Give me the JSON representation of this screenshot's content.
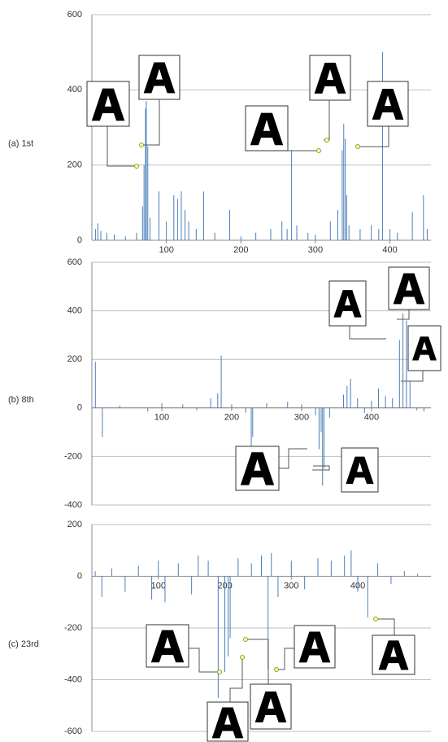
{
  "chart_data": [
    {
      "type": "bar",
      "label": "(a) 1st",
      "color": "#4a7ebb",
      "grid": true,
      "x": [
        5,
        8,
        12,
        20,
        30,
        45,
        60,
        68,
        70,
        72,
        73,
        75,
        78,
        90,
        100,
        110,
        115,
        120,
        125,
        130,
        140,
        150,
        165,
        185,
        200,
        220,
        240,
        255,
        262,
        268,
        275,
        290,
        300,
        320,
        330,
        336,
        338,
        340,
        342,
        345,
        360,
        375,
        385,
        390,
        400,
        410,
        430,
        445,
        450
      ],
      "values": [
        30,
        45,
        25,
        20,
        15,
        10,
        20,
        90,
        200,
        350,
        370,
        250,
        60,
        130,
        50,
        120,
        110,
        130,
        80,
        50,
        30,
        130,
        20,
        80,
        10,
        20,
        30,
        50,
        30,
        240,
        40,
        20,
        15,
        50,
        80,
        240,
        310,
        270,
        120,
        40,
        30,
        40,
        30,
        500,
        30,
        20,
        75,
        120,
        30
      ],
      "xlim": [
        0,
        455
      ],
      "xticks": [
        100,
        200,
        300,
        400
      ],
      "ylim": [
        0,
        600
      ],
      "yticks": [
        0,
        200,
        400,
        600
      ]
    },
    {
      "type": "bar",
      "label": "(b) 8th",
      "color": "#4a7ebb",
      "grid": true,
      "x": [
        5,
        15,
        40,
        80,
        100,
        130,
        150,
        170,
        180,
        185,
        200,
        220,
        228,
        230,
        250,
        280,
        300,
        320,
        325,
        328,
        330,
        332,
        340,
        360,
        365,
        370,
        380,
        390,
        400,
        410,
        420,
        430,
        440,
        445,
        450,
        455,
        465,
        475
      ],
      "values": [
        190,
        -120,
        10,
        -15,
        20,
        15,
        -10,
        40,
        60,
        215,
        15,
        -20,
        -160,
        -120,
        20,
        25,
        15,
        -30,
        -170,
        -100,
        -320,
        -250,
        -40,
        55,
        90,
        120,
        40,
        -20,
        30,
        80,
        50,
        40,
        280,
        390,
        360,
        110,
        -10,
        -15
      ],
      "xlim": [
        0,
        485
      ],
      "xticks": [
        100,
        200,
        300,
        400
      ],
      "ylim": [
        -400,
        600
      ],
      "yticks": [
        -400,
        -200,
        0,
        200,
        400,
        600
      ]
    },
    {
      "type": "bar",
      "label": "(c) 23rd",
      "color": "#4a7ebb",
      "grid": true,
      "x": [
        5,
        15,
        30,
        50,
        70,
        90,
        100,
        110,
        130,
        150,
        160,
        175,
        190,
        200,
        205,
        208,
        220,
        240,
        255,
        265,
        270,
        280,
        300,
        320,
        340,
        360,
        380,
        390,
        400,
        415,
        430,
        450,
        470,
        490
      ],
      "values": [
        20,
        -80,
        30,
        -60,
        40,
        -90,
        60,
        -100,
        50,
        -70,
        80,
        60,
        -470,
        -370,
        -310,
        -240,
        70,
        50,
        80,
        -360,
        90,
        -80,
        60,
        -50,
        70,
        60,
        80,
        100,
        -60,
        -160,
        50,
        -30,
        20,
        10
      ],
      "xlim": [
        0,
        510
      ],
      "xticks": [
        100,
        200,
        300,
        400
      ],
      "ylim": [
        -600,
        200
      ],
      "yticks": [
        -600,
        -400,
        -200,
        0,
        200
      ]
    }
  ]
}
